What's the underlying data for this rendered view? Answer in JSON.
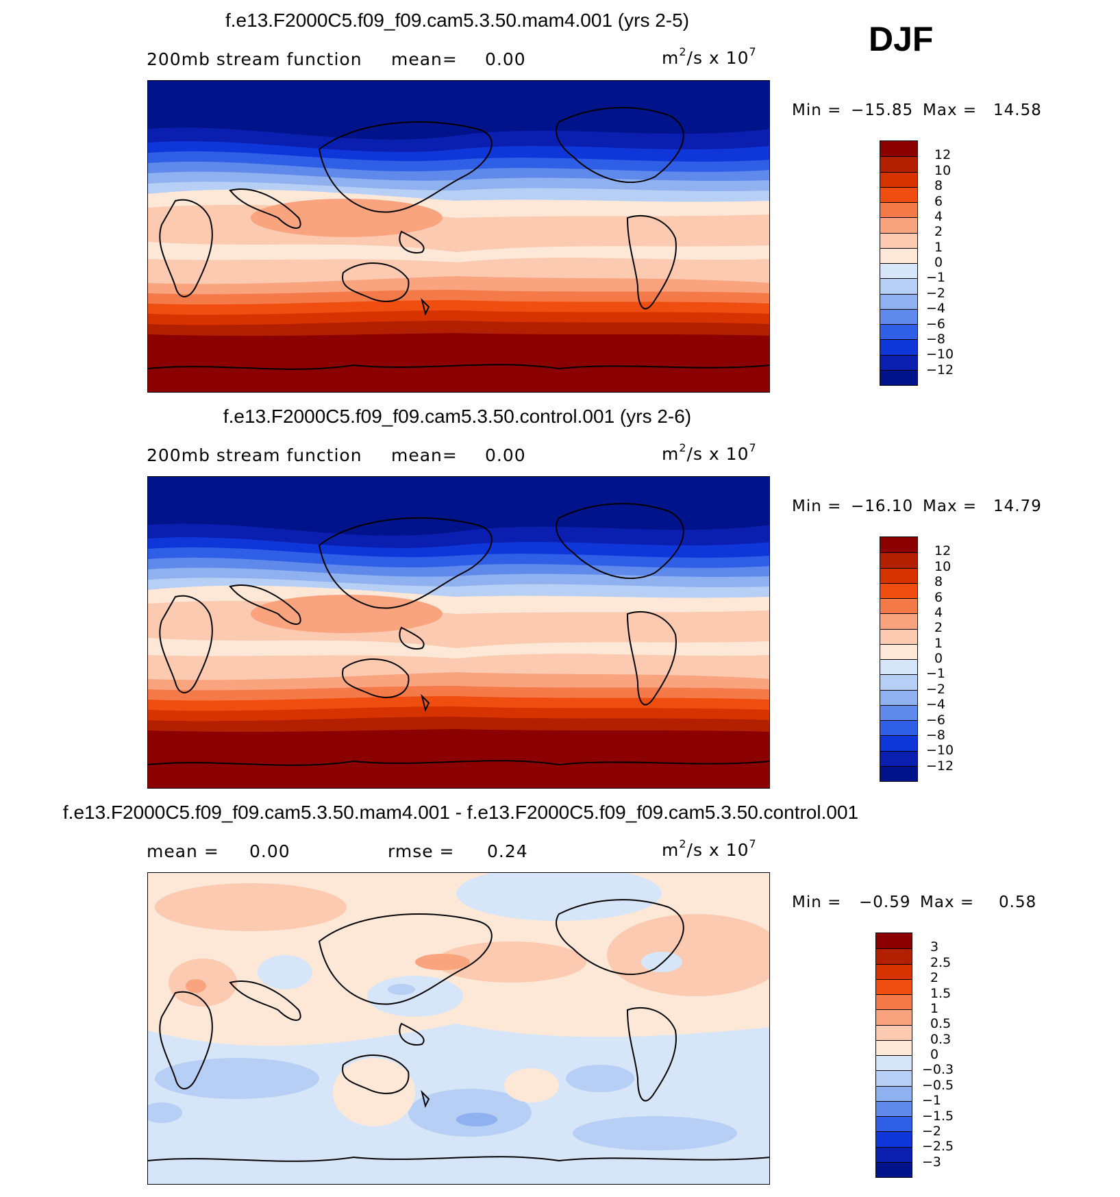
{
  "season": "DJF",
  "panels": [
    {
      "title": "f.e13.F2000C5.f09_f09.cam5.3.50.mam4.001 (yrs 2-5)",
      "subtitle_left": "200mb stream function",
      "mean_label": "mean=",
      "mean_value": "0.00",
      "units": "m",
      "units_exp1": "2",
      "units_rest": "/s x 10",
      "units_exp2": "7",
      "min_label": "Min =",
      "min_value": "−15.85",
      "max_label": "Max =",
      "max_value": "14.58",
      "colorbar_labels": [
        "12",
        "10",
        "8",
        "6",
        "4",
        "2",
        "1",
        "0",
        "−1",
        "−2",
        "−4",
        "−6",
        "−8",
        "−10",
        "−12"
      ],
      "colorbar_colors": [
        "#8b0000",
        "#b22000",
        "#d63300",
        "#f04d10",
        "#f57a4a",
        "#f9a47f",
        "#fccab0",
        "#fde8d8",
        "#d6e6f8",
        "#b7cff4",
        "#8fb1ef",
        "#5f89ea",
        "#2f5fe6",
        "#0f36d8",
        "#0a1fb0",
        "#00138a"
      ]
    },
    {
      "title": "f.e13.F2000C5.f09_f09.cam5.3.50.control.001 (yrs 2-6)",
      "subtitle_left": "200mb stream function",
      "mean_label": "mean=",
      "mean_value": "0.00",
      "units": "m",
      "units_exp1": "2",
      "units_rest": "/s x 10",
      "units_exp2": "7",
      "min_label": "Min =",
      "min_value": "−16.10",
      "max_label": "Max =",
      "max_value": "14.79",
      "colorbar_labels": [
        "12",
        "10",
        "8",
        "6",
        "4",
        "2",
        "1",
        "0",
        "−1",
        "−2",
        "−4",
        "−6",
        "−8",
        "−10",
        "−12"
      ],
      "colorbar_colors": [
        "#8b0000",
        "#b22000",
        "#d63300",
        "#f04d10",
        "#f57a4a",
        "#f9a47f",
        "#fccab0",
        "#fde8d8",
        "#d6e6f8",
        "#b7cff4",
        "#8fb1ef",
        "#5f89ea",
        "#2f5fe6",
        "#0f36d8",
        "#0a1fb0",
        "#00138a"
      ]
    },
    {
      "title": "f.e13.F2000C5.f09_f09.cam5.3.50.mam4.001 - f.e13.F2000C5.f09_f09.cam5.3.50.control.001",
      "mean_label": "mean =",
      "mean_value": "0.00",
      "rmse_label": "rmse =",
      "rmse_value": "0.24",
      "units": "m",
      "units_exp1": "2",
      "units_rest": "/s x 10",
      "units_exp2": "7",
      "min_label": "Min =",
      "min_value": "−0.59",
      "max_label": "Max =",
      "max_value": "0.58",
      "colorbar_labels": [
        "3",
        "2.5",
        "2",
        "1.5",
        "1",
        "0.5",
        "0.3",
        "0",
        "−0.3",
        "−0.5",
        "−1",
        "−1.5",
        "−2",
        "−2.5",
        "−3"
      ],
      "colorbar_colors": [
        "#8b0000",
        "#b22000",
        "#d63300",
        "#f04d10",
        "#f57a4a",
        "#f9a47f",
        "#fccab0",
        "#fde8d8",
        "#d6e6f8",
        "#b7cff4",
        "#8fb1ef",
        "#5f89ea",
        "#2f5fe6",
        "#0f36d8",
        "#0a1fb0",
        "#00138a"
      ]
    }
  ]
}
